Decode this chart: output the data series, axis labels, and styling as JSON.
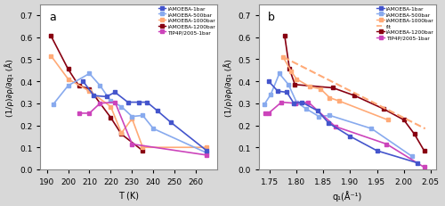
{
  "panel_a": {
    "iAMOEBA_1bar": {
      "T": [
        207,
        212,
        218,
        222,
        228,
        233,
        237,
        242,
        248,
        265
      ],
      "y": [
        0.4,
        0.335,
        0.33,
        0.35,
        0.305,
        0.305,
        0.305,
        0.265,
        0.215,
        0.085
      ],
      "color": "#4455cc",
      "marker": "s",
      "lw": 1.2,
      "ms": 3.0
    },
    "iAMOEBA_500bar": {
      "T": [
        193,
        200,
        210,
        215,
        220,
        225,
        230,
        235,
        240,
        265
      ],
      "y": [
        0.295,
        0.38,
        0.435,
        0.38,
        0.31,
        0.285,
        0.24,
        0.245,
        0.185,
        0.075
      ],
      "color": "#88aaee",
      "marker": "s",
      "lw": 1.2,
      "ms": 3.0
    },
    "iAMOEBA_1000bar": {
      "T": [
        192,
        200,
        210,
        220,
        225,
        230,
        235,
        265
      ],
      "y": [
        0.515,
        0.41,
        0.355,
        0.285,
        0.165,
        0.23,
        0.1,
        0.1
      ],
      "color": "#ffaa77",
      "marker": "s",
      "lw": 1.2,
      "ms": 3.0
    },
    "iAMOEBA_1200bar": {
      "T": [
        192,
        200,
        205,
        210,
        220,
        225,
        235
      ],
      "y": [
        0.605,
        0.455,
        0.38,
        0.365,
        0.235,
        0.16,
        0.085
      ],
      "color": "#880011",
      "marker": "s",
      "lw": 1.2,
      "ms": 3.0
    },
    "TIP4P_1bar": {
      "T": [
        205,
        210,
        215,
        222,
        230,
        265
      ],
      "y": [
        0.255,
        0.255,
        0.3,
        0.305,
        0.115,
        0.065
      ],
      "color": "#cc44bb",
      "marker": "s",
      "lw": 1.2,
      "ms": 3.0
    }
  },
  "panel_b": {
    "iAMOEBA_1bar": {
      "q": [
        1.748,
        1.765,
        1.782,
        1.795,
        1.81,
        1.84,
        1.86,
        1.9,
        1.95,
        2.025
      ],
      "y": [
        0.4,
        0.355,
        0.35,
        0.3,
        0.305,
        0.265,
        0.21,
        0.15,
        0.085,
        0.03
      ],
      "color": "#4455cc",
      "marker": "s",
      "lw": 1.2,
      "ms": 3.0
    },
    "iAMOEBA_500bar": {
      "q": [
        1.74,
        1.752,
        1.768,
        1.785,
        1.8,
        1.818,
        1.842,
        1.862,
        1.94,
        2.015
      ],
      "y": [
        0.295,
        0.34,
        0.435,
        0.385,
        0.305,
        0.275,
        0.24,
        0.245,
        0.185,
        0.06
      ],
      "color": "#88aaee",
      "marker": "s",
      "lw": 1.2,
      "ms": 3.0
    },
    "iAMOEBA_1000bar": {
      "q": [
        1.775,
        1.79,
        1.8,
        1.825,
        1.845,
        1.862,
        1.88,
        1.97
      ],
      "y": [
        0.51,
        0.445,
        0.41,
        0.375,
        0.365,
        0.325,
        0.31,
        0.225
      ],
      "color": "#ffaa77",
      "marker": "s",
      "lw": 1.2,
      "ms": 3.0
    },
    "iAMOEBA_1000bar_fit": {
      "q": [
        1.775,
        2.04
      ],
      "y": [
        0.51,
        0.185
      ],
      "color": "#ffaa77",
      "lw": 1.5,
      "linestyle": "--"
    },
    "iAMOEBA_1200bar": {
      "q": [
        1.778,
        1.787,
        1.797,
        1.868,
        1.908,
        1.962,
        2.0,
        2.02,
        2.038
      ],
      "y": [
        0.605,
        0.455,
        0.385,
        0.37,
        0.335,
        0.275,
        0.225,
        0.16,
        0.085
      ],
      "color": "#880011",
      "marker": "s",
      "lw": 1.2,
      "ms": 3.0
    },
    "TIP4P_1bar": {
      "q": [
        1.742,
        1.748,
        1.772,
        1.798,
        1.822,
        1.872,
        1.968,
        2.038
      ],
      "y": [
        0.255,
        0.255,
        0.305,
        0.3,
        0.305,
        0.195,
        0.115,
        0.01
      ],
      "color": "#cc44bb",
      "marker": "s",
      "lw": 1.2,
      "ms": 3.0
    }
  },
  "ylabel": "(1/ρ)∂ρ/∂q₁ (Å)",
  "xlabel_a": "T (K)",
  "xlabel_b": "q₁(Å⁻¹)",
  "xlim_a": [
    187,
    270
  ],
  "xlim_b": [
    1.73,
    2.06
  ],
  "ylim": [
    0.0,
    0.75
  ],
  "yticks": [
    0.0,
    0.1,
    0.2,
    0.3,
    0.4,
    0.5,
    0.6,
    0.7
  ],
  "xticks_a": [
    190,
    200,
    210,
    220,
    230,
    240,
    250,
    260
  ],
  "xticks_b": [
    1.75,
    1.8,
    1.85,
    1.9,
    1.95,
    2.0,
    2.05
  ],
  "axes_bg": "#ffffff",
  "fig_bg": "#d8d8d8",
  "legend_entries_a": [
    "iAMOEBA-1bar",
    "iAMOEBA-500bar",
    "iAMOEBA-1000bar",
    "iAMOEBA-1200bar",
    "TIP4P/2005-1bar"
  ],
  "legend_entries_b": [
    "iAMOEBA-1bar",
    "iAMOEBA-500bar",
    "iAMOEBA-1000bar",
    "fit",
    "iAMOEBA-1200bar",
    "TIP4P/2005-1bar"
  ],
  "legend_colors": [
    "#4455cc",
    "#88aaee",
    "#ffaa77",
    "#880011",
    "#cc44bb"
  ],
  "fit_label": "fit"
}
